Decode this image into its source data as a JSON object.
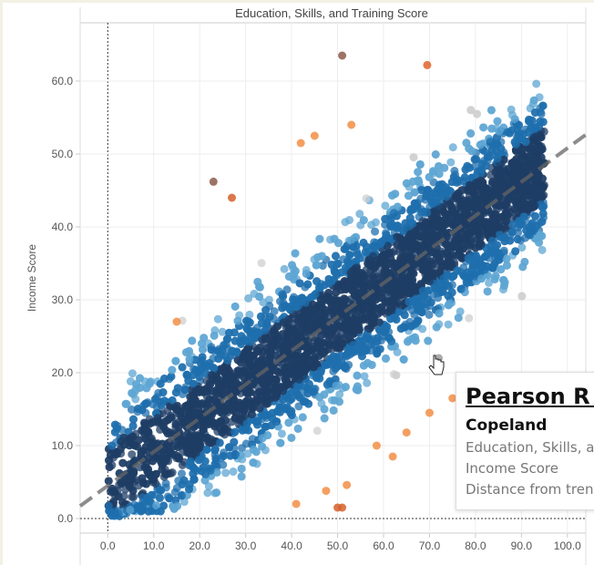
{
  "chart_data": {
    "type": "scatter",
    "title": "Education, Skills, and Training Score",
    "xlabel": "",
    "ylabel": "Income Score",
    "xlim": [
      -6,
      104
    ],
    "ylim": [
      -2,
      68
    ],
    "x_ticks": [
      "0.0",
      "10.0",
      "20.0",
      "30.0",
      "40.0",
      "50.0",
      "60.0",
      "70.0",
      "80.0",
      "90.0",
      "100.0"
    ],
    "y_ticks": [
      "0.0",
      "10.0",
      "20.0",
      "30.0",
      "40.0",
      "50.0",
      "60.0"
    ],
    "grid": true,
    "trend_line": {
      "intercept": 4.5,
      "slope": 0.463,
      "style": "dashed"
    },
    "color_bands_by_distance_from_trend": [
      {
        "max_abs_distance": 5,
        "color": "#1f3d66"
      },
      {
        "max_abs_distance": 9,
        "color": "#1f6fae"
      },
      {
        "max_abs_distance": 13,
        "color": "#5ea6d3"
      },
      {
        "max_abs_distance": 17,
        "color": "#cfcfcf"
      },
      {
        "max_abs_distance": 22,
        "color": "#f59a55"
      },
      {
        "max_abs_distance": 99,
        "color": "#d5602c"
      }
    ],
    "outlier_points": [
      {
        "x": 51,
        "y": 63.5,
        "color": "#8c5a4a"
      },
      {
        "x": 69.5,
        "y": 62.2,
        "color": "#e0642c"
      },
      {
        "x": 53,
        "y": 54,
        "color": "#f28e45"
      },
      {
        "x": 45,
        "y": 52.5,
        "color": "#f28e45"
      },
      {
        "x": 42,
        "y": 51.5,
        "color": "#f28e45"
      },
      {
        "x": 23,
        "y": 46.2,
        "color": "#8c5a4a"
      },
      {
        "x": 27,
        "y": 44,
        "color": "#d5602c"
      },
      {
        "x": 15,
        "y": 27,
        "color": "#f28e45"
      },
      {
        "x": 50,
        "y": 1.5,
        "color": "#d5602c"
      },
      {
        "x": 51,
        "y": 1.5,
        "color": "#d5602c"
      },
      {
        "x": 41,
        "y": 2,
        "color": "#f28e45"
      },
      {
        "x": 47.5,
        "y": 3.8,
        "color": "#f28e45"
      },
      {
        "x": 52,
        "y": 4.6,
        "color": "#f28e45"
      },
      {
        "x": 58.5,
        "y": 10,
        "color": "#f28e45"
      },
      {
        "x": 65,
        "y": 11.8,
        "color": "#f28e45"
      },
      {
        "x": 62,
        "y": 8.5,
        "color": "#f28e45"
      },
      {
        "x": 70,
        "y": 14.5,
        "color": "#f28e45"
      },
      {
        "x": 75,
        "y": 16.5,
        "color": "#f28e45"
      },
      {
        "x": 72,
        "y": 22,
        "color": "#9e9e9e"
      }
    ]
  },
  "tooltip": {
    "title": "Pearson R C",
    "name": "Copeland",
    "line1": "Education, Skills, a",
    "line2": "Income Score",
    "line3": "Distance from tren"
  }
}
